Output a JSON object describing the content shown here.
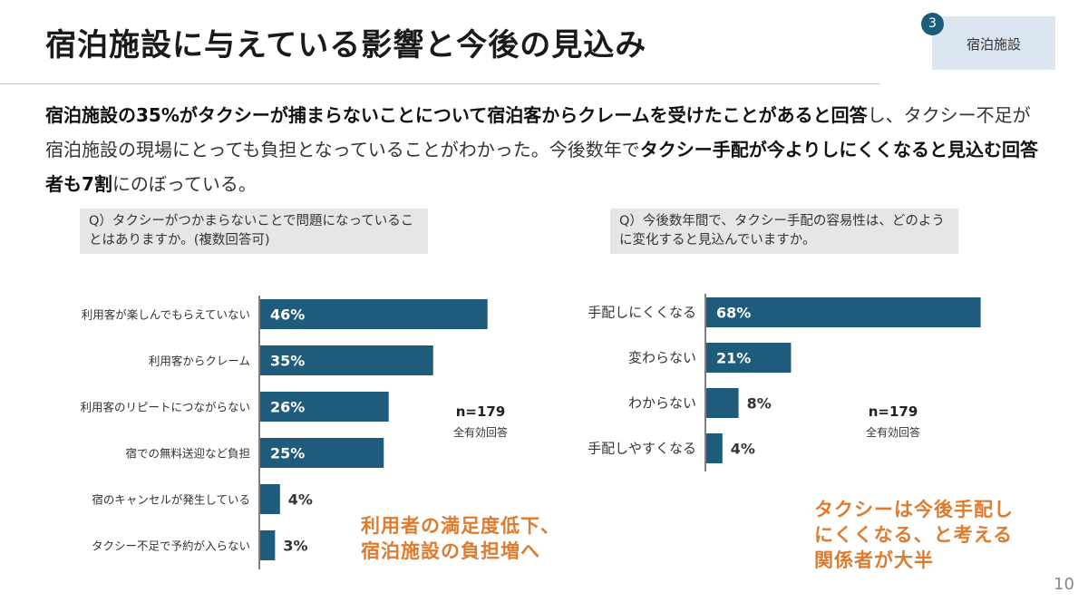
{
  "title": "宿泊施設に与えている影響と今後の見込み",
  "tag": {
    "number": "3",
    "label": "宿泊施設"
  },
  "intro": {
    "bold1": "宿泊施設の35%がタクシーが捕まらないことについて宿泊客からクレームを受けたことがあると回答",
    "normal1": "し、タクシー不足が宿泊施設の現場にとっても負担となっていることがわかった。今後数年で",
    "bold2": "タクシー手配が今よりしにくくなると見込む回答者も7割",
    "normal2": "にのぼっている。"
  },
  "left_question": "Q）タクシーがつかまらないことで問題になっていることはありますか。(複数回答可)",
  "right_question": "Q）今後数年間で、タクシー手配の容易性は、どのように変化すると見込んでいますか。",
  "chart_data": [
    {
      "type": "bar",
      "orientation": "horizontal",
      "categories": [
        "利用客が楽しんでもらえていない",
        "利用客からクレーム",
        "利用客のリピートにつながらない",
        "宿での無料送迎など負担",
        "宿のキャンセルが発生している",
        "タクシー不足で予約が入らない"
      ],
      "values": [
        46,
        35,
        26,
        25,
        4,
        3
      ],
      "value_labels": [
        "46%",
        "35%",
        "26%",
        "25%",
        "4%",
        "3%"
      ],
      "bar_color": "#1f5c7b",
      "n_label": "n=179",
      "n_sub": "全有効回答"
    },
    {
      "type": "bar",
      "orientation": "horizontal",
      "categories": [
        "手配しにくくなる",
        "変わらない",
        "わからない",
        "手配しやすくなる"
      ],
      "values": [
        68,
        21,
        8,
        4
      ],
      "value_labels": [
        "68%",
        "21%",
        "8%",
        "4%"
      ],
      "bar_color": "#1f5c7b",
      "n_label": "n=179",
      "n_sub": "全有効回答"
    }
  ],
  "left_note": [
    "利用者の満足度低下、",
    "宿泊施設の負担増へ"
  ],
  "right_note": [
    "タクシーは今後手配し",
    "にくくなる、と考える",
    "関係者が大半"
  ],
  "page_number": "10",
  "colors": {
    "bar": "#1f5c7b",
    "accent": "#e07b2d",
    "tag_bg": "#dbe6f1"
  }
}
